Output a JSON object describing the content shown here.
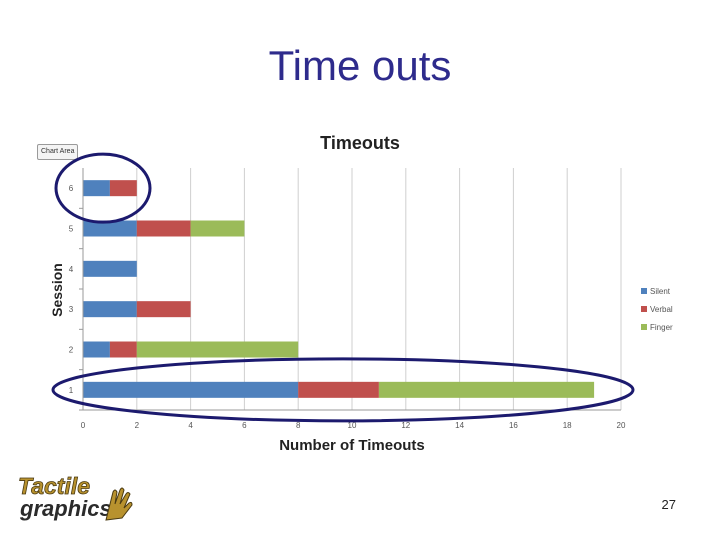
{
  "slide": {
    "title": "Time outs",
    "page_number": "27",
    "chart_area_tag": "Chart Area",
    "logo_text_top": "Tactile",
    "logo_text_bottom": "graphics"
  },
  "colors": {
    "title": "#2e2b8c",
    "silent": "#4f81bd",
    "verbal": "#c0504d",
    "finger": "#9bbb59",
    "highlight_ellipse": "#1c1a6e"
  },
  "chart_data": {
    "type": "bar",
    "orientation": "horizontal",
    "stacked": true,
    "title": "Timeouts",
    "xlabel": "Number of Timeouts",
    "ylabel": "Session",
    "categories": [
      "1",
      "2",
      "3",
      "4",
      "5",
      "6"
    ],
    "xlim": [
      0,
      20
    ],
    "xticks": [
      "0",
      "2",
      "4",
      "6",
      "8",
      "10",
      "12",
      "14",
      "16",
      "18",
      "20"
    ],
    "grid": true,
    "legend_position": "right",
    "series": [
      {
        "name": "Silent",
        "color": "#4f81bd",
        "values": [
          8,
          1,
          2,
          2,
          2,
          1
        ]
      },
      {
        "name": "Verbal",
        "color": "#c0504d",
        "values": [
          3,
          1,
          2,
          0,
          2,
          1
        ]
      },
      {
        "name": "Finger",
        "color": "#9bbb59",
        "values": [
          8,
          6,
          0,
          0,
          2,
          0
        ]
      }
    ],
    "highlighted_sessions": [
      "1",
      "6"
    ]
  }
}
